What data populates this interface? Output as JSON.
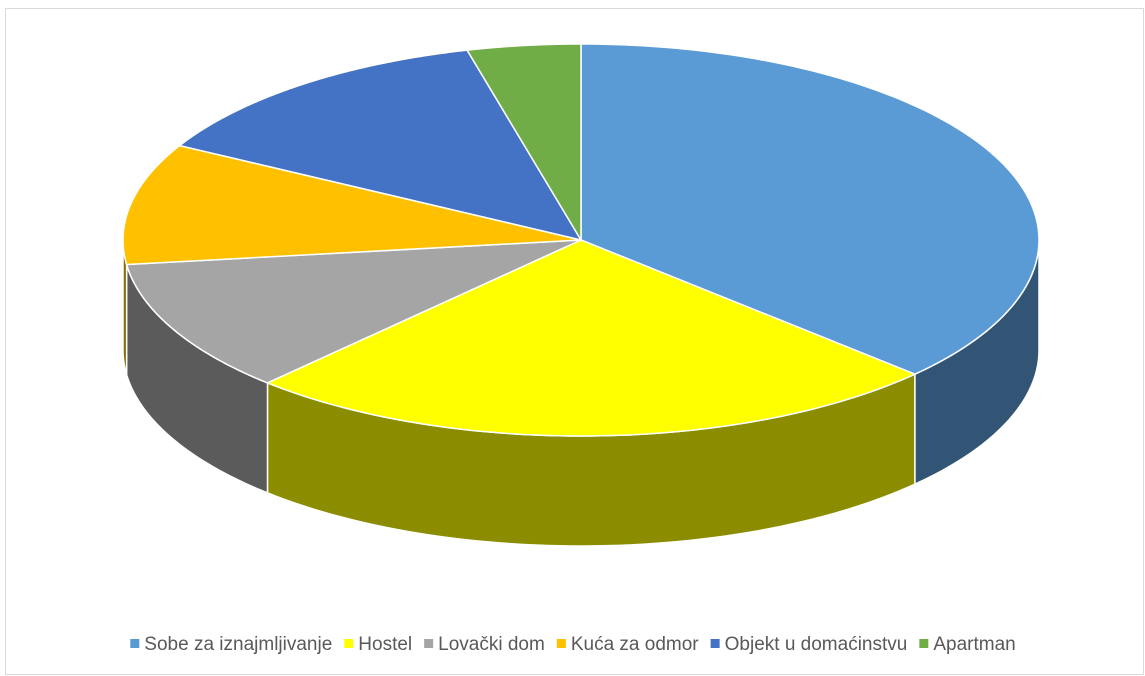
{
  "chart_data": {
    "type": "pie3d",
    "categories": [
      "Sobe za iznajmljivanje",
      "Hostel",
      "Lovački dom",
      "Kuća za odmor",
      "Objekt u domaćinstvu",
      "Apartman"
    ],
    "values": [
      37,
      25,
      11,
      10,
      13,
      4
    ],
    "colors": [
      "#5b9bd5",
      "#ffff00",
      "#a5a5a5",
      "#ffc000",
      "#4472c4",
      "#70ad47"
    ],
    "legend": "bottom"
  }
}
